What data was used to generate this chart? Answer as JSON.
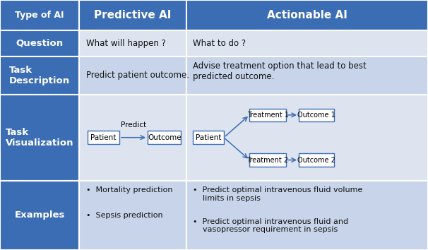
{
  "header_bg": "#3B6DB5",
  "row_label_bg": "#3B6DB5",
  "cell_bg_light": "#C8D4EA",
  "cell_bg_lighter": "#DDE4F0",
  "box_border_color": "#3B6DB5",
  "arrow_color": "#3B6DB5",
  "headers": [
    "Type of AI",
    "Predictive AI",
    "Actionable AI"
  ],
  "row_labels": [
    "Question",
    "Task\nDescription",
    "Task\nVisualization",
    "Examples"
  ],
  "question_predictive": "What will happen ?",
  "question_actionable": "What to do ?",
  "task_desc_predictive": "Predict patient outcome.",
  "task_desc_actionable": "Advise treatment option that lead to best\npredicted outcome.",
  "examples_predictive_1": "•  Mortality prediction",
  "examples_predictive_2": "•  Sepsis prediction",
  "examples_actionable_1": "•  Predict optimal intravenous fluid volume\n    limits in sepsis",
  "examples_actionable_2": "•  Predict optimal intravenous fluid and\n    vasopressor requirement in sepsis",
  "text_color_dark": "#111111",
  "figsize": [
    6.06,
    3.54
  ],
  "dpi": 100,
  "c0": 0.0,
  "c1": 0.185,
  "c2": 0.435,
  "c3": 1.0,
  "r0": 1.0,
  "r1": 0.878,
  "r2": 0.775,
  "r3": 0.622,
  "r4": 0.278,
  "r5": 0.0
}
